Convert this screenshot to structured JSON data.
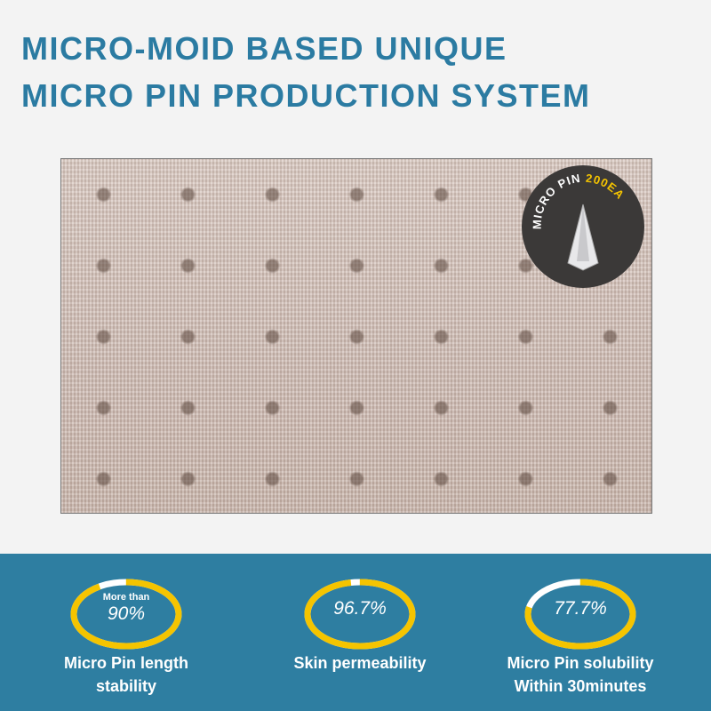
{
  "header": {
    "line1": "MICRO-MOID BASED UNIQUE",
    "line2": "MICRO PIN PRODUCTION SYSTEM"
  },
  "badge": {
    "text_white": "MICRO PIN ",
    "text_yellow": "200EA"
  },
  "colors": {
    "title": "#2b7ba2",
    "band": "#2e7ea1",
    "ring": "#f5c400",
    "ring_gap": "#ffffff"
  },
  "stats": [
    {
      "prefix": "More than",
      "value": "90%",
      "fraction": 0.9,
      "label_line1": "Micro Pin length",
      "label_line2": "stability"
    },
    {
      "prefix": "",
      "value": "96.7%",
      "fraction": 0.967,
      "label_line1": "Skin permeability",
      "label_line2": ""
    },
    {
      "prefix": "",
      "value": "77.7%",
      "fraction": 0.777,
      "label_line1": "Micro Pin solubility",
      "label_line2": "Within 30minutes"
    }
  ]
}
